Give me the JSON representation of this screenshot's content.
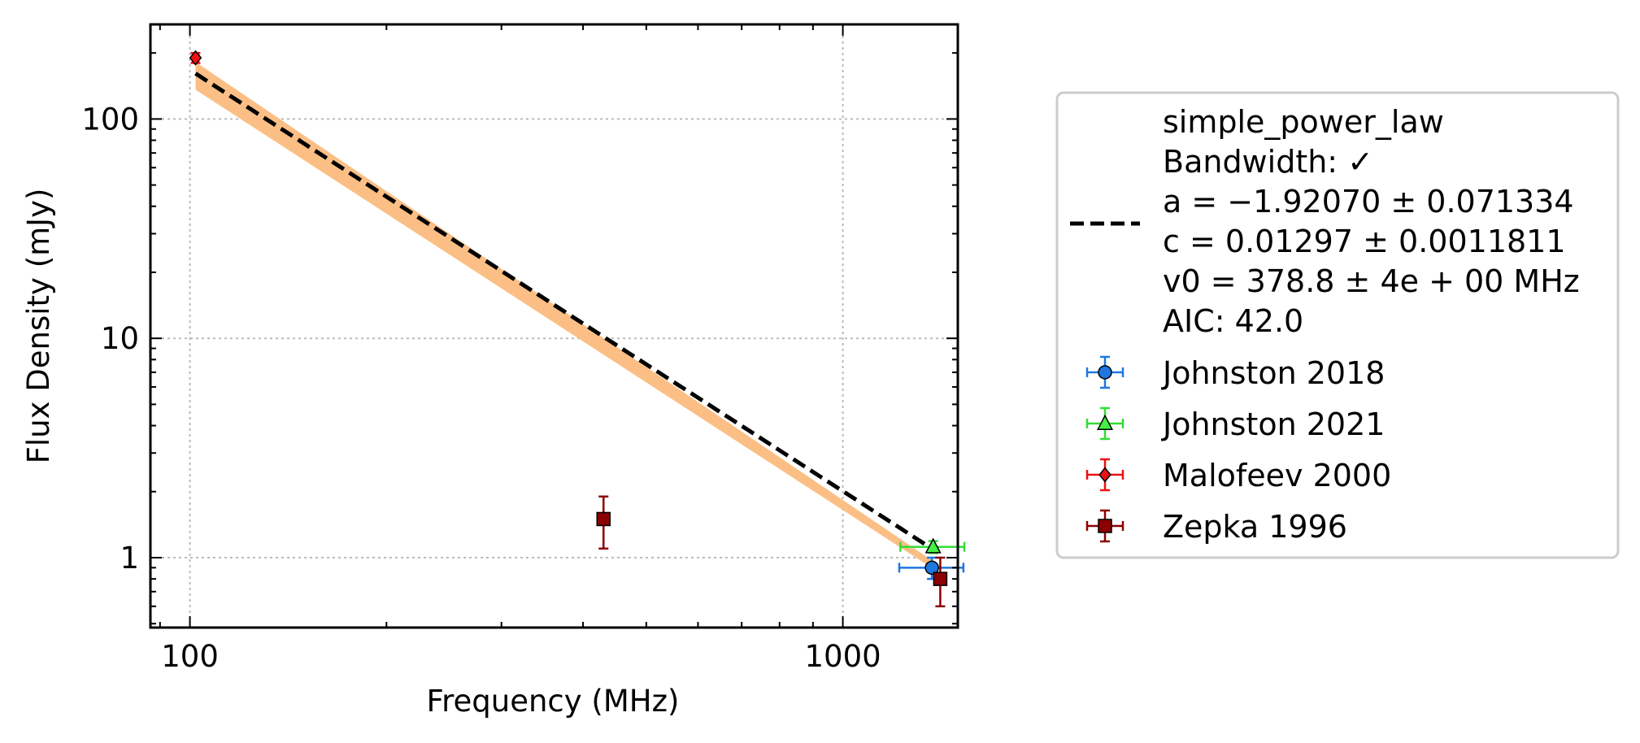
{
  "chart_data": {
    "type": "scatter",
    "xlabel": "Frequency (MHz)",
    "ylabel": "Flux Density (mJy)",
    "xscale": "log",
    "yscale": "log",
    "xlim": [
      87,
      1500
    ],
    "ylim": [
      0.48,
      270
    ],
    "grid": true,
    "legend_position": "right, outside",
    "x_tick_labels": [
      {
        "value": 100,
        "label": "100"
      },
      {
        "value": 1000,
        "label": "1000"
      }
    ],
    "y_tick_labels": [
      {
        "value": 1,
        "label": "1"
      },
      {
        "value": 10,
        "label": "10"
      },
      {
        "value": 100,
        "label": "100"
      }
    ],
    "model": {
      "legend_lines": [
        "simple_power_law",
        "Bandwidth: ✓",
        "a = −1.92070 ± 0.071334",
        "c = 0.01297 ± 0.0011811",
        "v0 = 378.8 ± 4e + 00 MHz",
        "AIC: 42.0"
      ],
      "a": -1.9207,
      "c": 0.01297,
      "v0": 378.8,
      "x_range": [
        102,
        1400
      ],
      "color": "#000000",
      "band_color": "#fbbf85",
      "band_upper": [
        [
          102,
          182
        ],
        [
          1400,
          0.93
        ]
      ],
      "band_lower": [
        [
          102,
          136
        ],
        [
          1400,
          0.86
        ]
      ]
    },
    "series": [
      {
        "name": "Johnston 2018",
        "marker": "circle",
        "color": "#1f77e0",
        "errcolor": "#1f77e0",
        "points": [
          {
            "x": 1369,
            "y": 0.9,
            "xerr": [
              1220,
              1530
            ],
            "yerr": [
              0.8,
              1.0
            ]
          }
        ]
      },
      {
        "name": "Johnston 2021",
        "marker": "triangle",
        "color": "#44ee44",
        "errcolor": "#33dd33",
        "points": [
          {
            "x": 1375,
            "y": 1.12,
            "xerr": [
              1225,
              1535
            ],
            "yerr": [
              1.05,
              1.19
            ]
          }
        ]
      },
      {
        "name": "Malofeev 2000",
        "marker": "diamond",
        "color": "#ee1111",
        "errcolor": "#ee1111",
        "points": [
          {
            "x": 102,
            "y": 190,
            "xerr": [
              101,
              103
            ],
            "yerr": [
              180,
              200
            ]
          }
        ]
      },
      {
        "name": "Zepka 1996",
        "marker": "square",
        "color": "#8b0000",
        "errcolor": "#8b0000",
        "points": [
          {
            "x": 430,
            "y": 1.5,
            "xerr": [
              429,
              431
            ],
            "yerr": [
              1.1,
              1.9
            ]
          },
          {
            "x": 1410,
            "y": 0.8,
            "xerr": [
              1409,
              1411
            ],
            "yerr": [
              0.6,
              1.0
            ]
          }
        ]
      }
    ]
  }
}
